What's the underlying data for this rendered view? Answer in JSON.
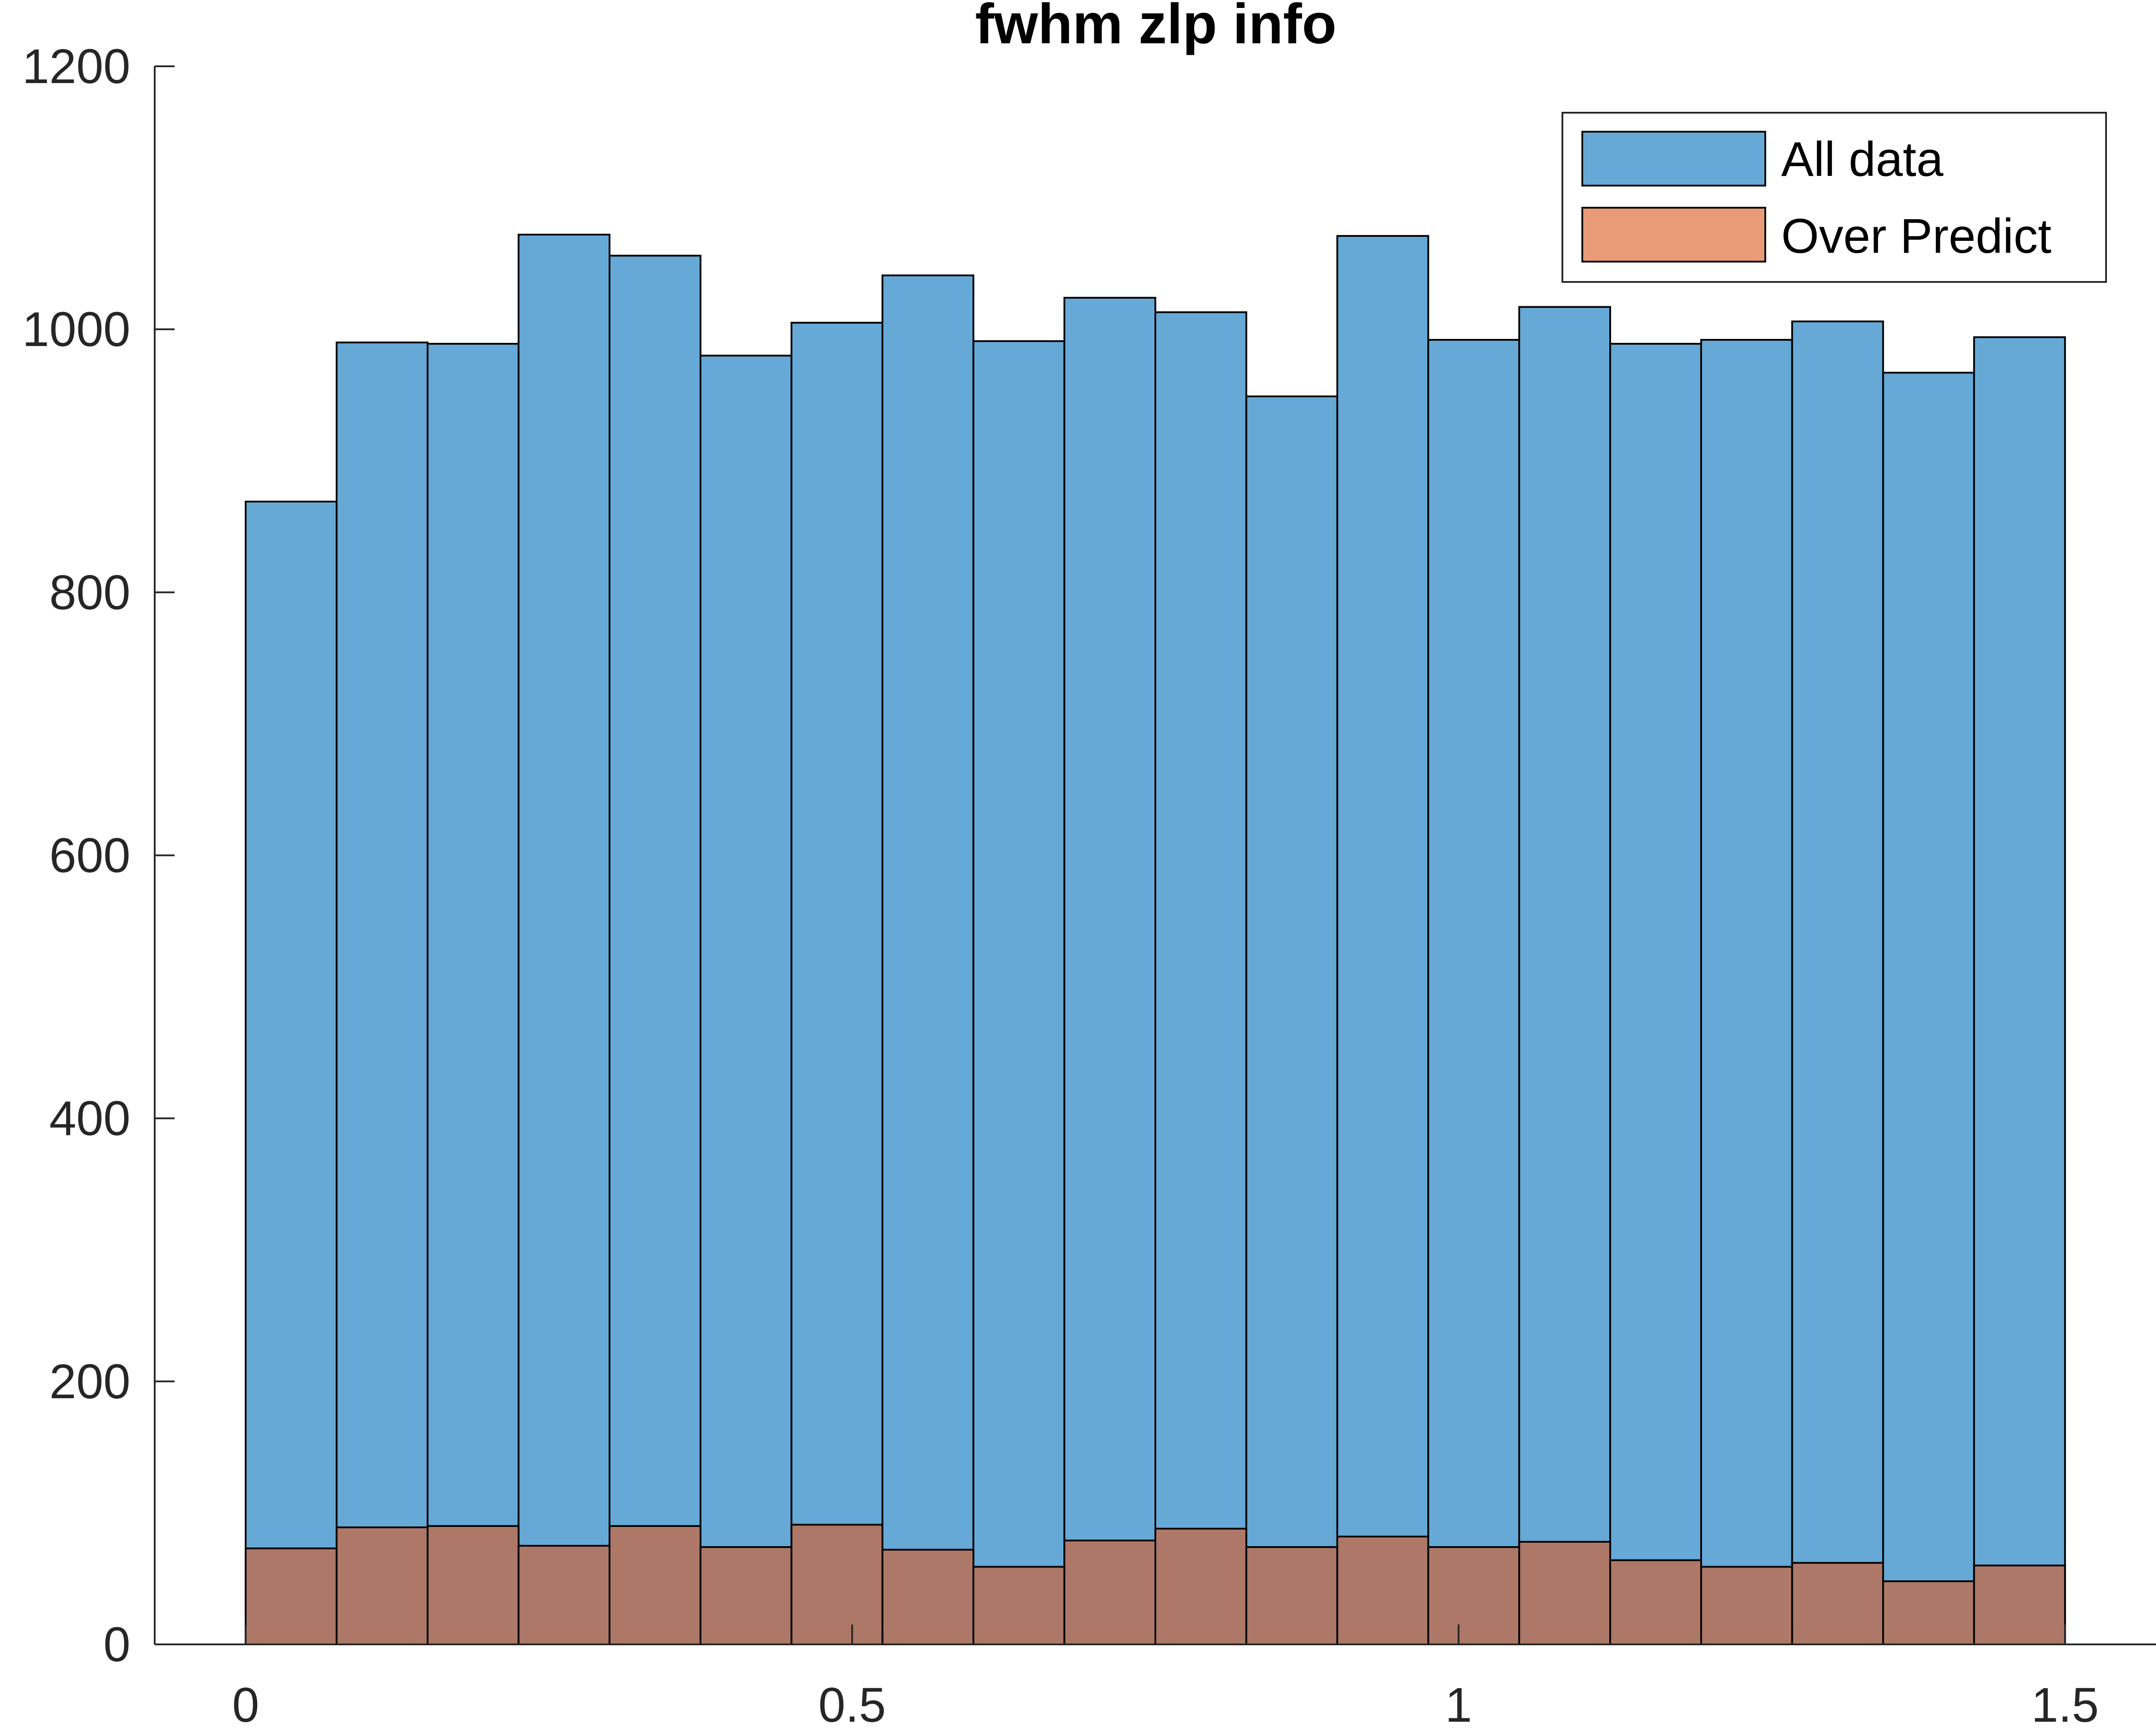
{
  "chart_data": {
    "type": "bar",
    "title": "fwhm zlp info",
    "xlabel": "",
    "ylabel": "",
    "xlim": [
      -0.075,
      1.575
    ],
    "ylim": [
      0,
      1200
    ],
    "x_ticks": [
      0,
      0.5,
      1,
      1.5
    ],
    "x_tick_labels": [
      "0",
      "0.5",
      "1",
      "1.5"
    ],
    "y_ticks": [
      0,
      200,
      400,
      600,
      800,
      1000,
      1200
    ],
    "y_tick_labels": [
      "0",
      "200",
      "400",
      "600",
      "800",
      "1000",
      "1200"
    ],
    "bin_edges": [
      0,
      0.075,
      0.15,
      0.225,
      0.3,
      0.375,
      0.45,
      0.525,
      0.6,
      0.675,
      0.75,
      0.825,
      0.9,
      0.975,
      1.05,
      1.125,
      1.2,
      1.275,
      1.35,
      1.425,
      1.5
    ],
    "grid": false,
    "legend_position": "top-right",
    "series": [
      {
        "name": "All data",
        "color": "#66a9d7",
        "values": [
          869,
          990,
          989,
          1072,
          1056,
          980,
          1005,
          1041,
          991,
          1024,
          1013,
          949,
          1071,
          992,
          1017,
          989,
          992,
          1006,
          967,
          994
        ]
      },
      {
        "name": "Over Predict",
        "color": "#ad7867",
        "legend_color": "#e99a76",
        "values": [
          73,
          89,
          90,
          75,
          90,
          74,
          91,
          72,
          59,
          79,
          88,
          74,
          82,
          74,
          78,
          64,
          59,
          62,
          48,
          60
        ]
      }
    ]
  }
}
